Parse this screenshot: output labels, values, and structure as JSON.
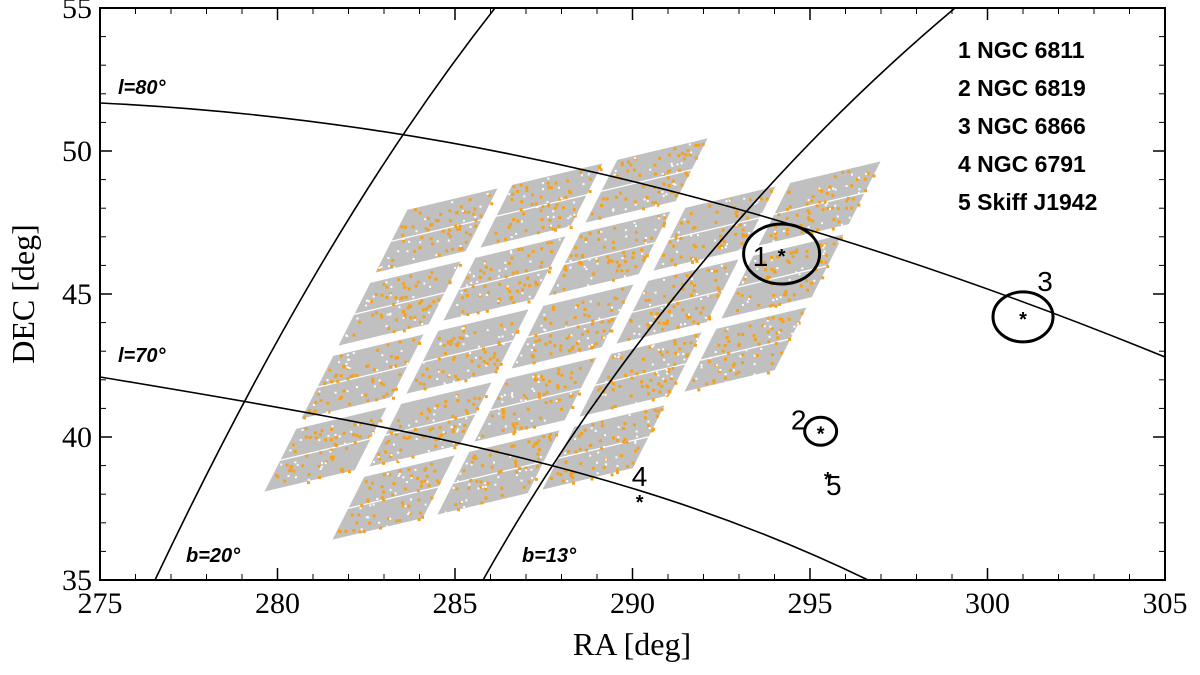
{
  "chart_data": {
    "type": "scatter",
    "xlabel": "RA [deg]",
    "ylabel": "DEC [deg]",
    "xlim": [
      275,
      305
    ],
    "ylim": [
      35,
      55
    ],
    "xticks": [
      "275",
      "280",
      "285",
      "290",
      "295",
      "300",
      "305"
    ],
    "yticks": [
      "35",
      "40",
      "45",
      "50",
      "55"
    ],
    "grid": false,
    "colors": {
      "field": "#c0c0c0",
      "points": "#f4a21e",
      "lines": "#000000"
    },
    "curve_labels": [
      "l=80°",
      "l=70°",
      "b=20°",
      "b=13°"
    ],
    "legend": {
      "placement": "top-right",
      "entries": [
        "1 NGC 6811",
        "2 NGC 6819",
        "3 NGC 6866",
        "4 NGC 6791",
        "5 Skiff J1942"
      ]
    },
    "clusters": [
      {
        "label": "1",
        "ra": 294.2,
        "dec": 46.4
      },
      {
        "label": "2",
        "ra": 295.3,
        "dec": 40.2
      },
      {
        "label": "3",
        "ra": 301.0,
        "dec": 44.2
      },
      {
        "label": "4",
        "ra": 290.2,
        "dec": 37.8
      },
      {
        "label": "5",
        "ra": 295.5,
        "dec": 38.6
      }
    ]
  }
}
